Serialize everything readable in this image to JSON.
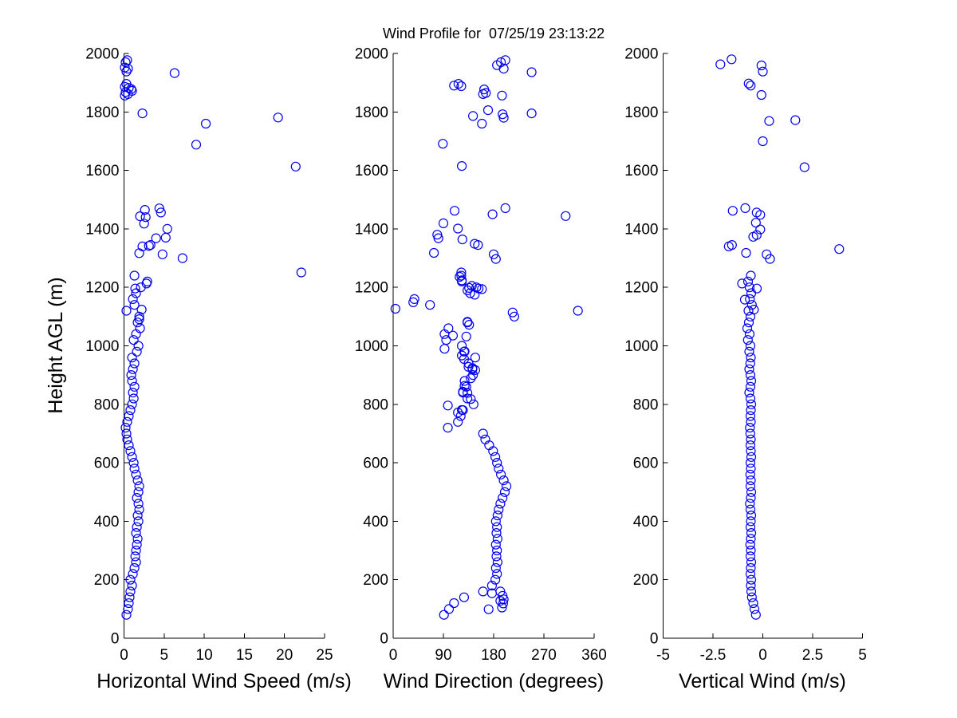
{
  "figure": {
    "title": "Wind Profile for  07/25/19 23:13:22",
    "marker_color": "#0000EE",
    "axis_color": "#000000",
    "background": "#FFFFFF",
    "marker_style": "open-circle",
    "tick_direction": "in"
  },
  "chart_data": [
    {
      "type": "scatter",
      "xlabel": "Horizontal Wind Speed (m/s)",
      "ylabel": "Height AGL (m)",
      "xlim": [
        0,
        25
      ],
      "ylim": [
        0,
        2000
      ],
      "xticks": [
        0,
        5,
        10,
        15,
        20,
        25
      ],
      "yticks": [
        0,
        200,
        400,
        600,
        800,
        1000,
        1200,
        1400,
        1600,
        1800,
        2000
      ],
      "grid": false,
      "points": [
        [
          0.3,
          80
        ],
        [
          0.5,
          100
        ],
        [
          0.6,
          120
        ],
        [
          0.7,
          140
        ],
        [
          0.8,
          160
        ],
        [
          1.0,
          180
        ],
        [
          0.8,
          200
        ],
        [
          1.1,
          220
        ],
        [
          1.3,
          240
        ],
        [
          1.5,
          260
        ],
        [
          1.4,
          280
        ],
        [
          1.5,
          300
        ],
        [
          1.6,
          320
        ],
        [
          1.7,
          340
        ],
        [
          1.5,
          360
        ],
        [
          1.6,
          380
        ],
        [
          1.8,
          400
        ],
        [
          1.7,
          420
        ],
        [
          1.9,
          440
        ],
        [
          1.8,
          460
        ],
        [
          1.6,
          480
        ],
        [
          1.8,
          500
        ],
        [
          1.9,
          520
        ],
        [
          1.7,
          540
        ],
        [
          1.5,
          560
        ],
        [
          1.3,
          580
        ],
        [
          1.2,
          600
        ],
        [
          1.0,
          620
        ],
        [
          0.8,
          640
        ],
        [
          0.6,
          660
        ],
        [
          0.4,
          680
        ],
        [
          0.3,
          700
        ],
        [
          0.2,
          720
        ],
        [
          0.4,
          740
        ],
        [
          0.6,
          760
        ],
        [
          0.8,
          780
        ],
        [
          1.0,
          800
        ],
        [
          1.2,
          820
        ],
        [
          1.1,
          840
        ],
        [
          1.3,
          860
        ],
        [
          1.0,
          880
        ],
        [
          0.9,
          900
        ],
        [
          1.1,
          920
        ],
        [
          1.3,
          940
        ],
        [
          1.0,
          960
        ],
        [
          1.6,
          980
        ],
        [
          1.8,
          1000
        ],
        [
          1.2,
          1020
        ],
        [
          1.5,
          1040
        ],
        [
          2.0,
          1060
        ],
        [
          1.7,
          1080
        ],
        [
          1.9,
          1100
        ],
        [
          0.3,
          1120
        ],
        [
          1.3,
          1140
        ],
        [
          1.1,
          1160
        ],
        [
          1.5,
          1180
        ],
        [
          2.1,
          1200
        ],
        [
          2.9,
          1220
        ],
        [
          1.3,
          1240
        ],
        [
          1.9,
          1091
        ],
        [
          2.2,
          1124
        ],
        [
          1.4,
          1196
        ],
        [
          2.8,
          1213
        ],
        [
          22.1,
          1251
        ],
        [
          7.3,
          1300
        ],
        [
          4.8,
          1313
        ],
        [
          1.9,
          1317
        ],
        [
          2.3,
          1340
        ],
        [
          3.1,
          1342
        ],
        [
          3.3,
          1345
        ],
        [
          4.0,
          1368
        ],
        [
          5.2,
          1370
        ],
        [
          5.4,
          1400
        ],
        [
          2.5,
          1418
        ],
        [
          2.7,
          1440
        ],
        [
          2.0,
          1443
        ],
        [
          4.6,
          1456
        ],
        [
          2.6,
          1465
        ],
        [
          4.4,
          1470
        ],
        [
          21.4,
          1613
        ],
        [
          9.0,
          1688
        ],
        [
          10.2,
          1760
        ],
        [
          19.2,
          1781
        ],
        [
          2.3,
          1795
        ],
        [
          0.1,
          1856
        ],
        [
          0.5,
          1861
        ],
        [
          0.2,
          1868
        ],
        [
          1.0,
          1872
        ],
        [
          0.9,
          1878
        ],
        [
          0.6,
          1882
        ],
        [
          0.1,
          1886
        ],
        [
          0.3,
          1896
        ],
        [
          6.3,
          1933
        ],
        [
          0.3,
          1938
        ],
        [
          0.5,
          1948
        ],
        [
          0.1,
          1952
        ],
        [
          0.2,
          1970
        ],
        [
          0.4,
          1977
        ]
      ]
    },
    {
      "type": "scatter",
      "xlabel": "Wind Direction (degrees)",
      "ylabel": "",
      "xlim": [
        0,
        360
      ],
      "ylim": [
        0,
        2000
      ],
      "xticks": [
        0,
        90,
        180,
        270,
        360
      ],
      "yticks": [
        0,
        200,
        400,
        600,
        800,
        1000,
        1200,
        1400,
        1600,
        1800,
        2000
      ],
      "grid": false,
      "points": [
        [
          91,
          80
        ],
        [
          100,
          100
        ],
        [
          109,
          120
        ],
        [
          127,
          140
        ],
        [
          161,
          160
        ],
        [
          177,
          180
        ],
        [
          183,
          200
        ],
        [
          186,
          220
        ],
        [
          184,
          240
        ],
        [
          187,
          260
        ],
        [
          185,
          280
        ],
        [
          186,
          300
        ],
        [
          184,
          320
        ],
        [
          187,
          340
        ],
        [
          185,
          360
        ],
        [
          186,
          380
        ],
        [
          184,
          400
        ],
        [
          187,
          420
        ],
        [
          189,
          440
        ],
        [
          192,
          460
        ],
        [
          196,
          480
        ],
        [
          200,
          500
        ],
        [
          203,
          520
        ],
        [
          198,
          540
        ],
        [
          193,
          560
        ],
        [
          189,
          580
        ],
        [
          186,
          600
        ],
        [
          183,
          620
        ],
        [
          179,
          640
        ],
        [
          172,
          660
        ],
        [
          165,
          680
        ],
        [
          161,
          700
        ],
        [
          98,
          720
        ],
        [
          116,
          740
        ],
        [
          121,
          760
        ],
        [
          125,
          780
        ],
        [
          144,
          800
        ],
        [
          133,
          820
        ],
        [
          125,
          840
        ],
        [
          131,
          860
        ],
        [
          128,
          880
        ],
        [
          143,
          900
        ],
        [
          142,
          920
        ],
        [
          135,
          940
        ],
        [
          147,
          960
        ],
        [
          127,
          980
        ],
        [
          123,
          1000
        ],
        [
          95,
          1020
        ],
        [
          92,
          1040
        ],
        [
          99,
          1060
        ],
        [
          133,
          1080
        ],
        [
          217,
          1100
        ],
        [
          331,
          1120
        ],
        [
          66,
          1140
        ],
        [
          38,
          1160
        ],
        [
          138,
          1180
        ],
        [
          149,
          1200
        ],
        [
          123,
          1220
        ],
        [
          122,
          1240
        ],
        [
          171,
          99
        ],
        [
          195,
          105
        ],
        [
          197,
          119
        ],
        [
          192,
          128
        ],
        [
          198,
          133
        ],
        [
          196,
          145
        ],
        [
          177,
          154
        ],
        [
          192,
          160
        ],
        [
          116,
          772
        ],
        [
          123,
          781
        ],
        [
          98,
          796
        ],
        [
          139,
          818
        ],
        [
          133,
          839
        ],
        [
          125,
          843
        ],
        [
          128,
          863
        ],
        [
          139,
          889
        ],
        [
          147,
          917
        ],
        [
          142,
          924
        ],
        [
          135,
          928
        ],
        [
          127,
          955
        ],
        [
          123,
          967
        ],
        [
          128,
          981
        ],
        [
          92,
          990
        ],
        [
          136,
          1072
        ],
        [
          133,
          1082
        ],
        [
          214,
          1114
        ],
        [
          4,
          1127
        ],
        [
          36,
          1149
        ],
        [
          146,
          1175
        ],
        [
          133,
          1190
        ],
        [
          159,
          1194
        ],
        [
          153,
          1196
        ],
        [
          136,
          1198
        ],
        [
          141,
          1205
        ],
        [
          119,
          1236
        ],
        [
          131,
          1032
        ],
        [
          107,
          1035
        ],
        [
          123,
          1224
        ],
        [
          122,
          1251
        ],
        [
          184,
          1297
        ],
        [
          180,
          1313
        ],
        [
          73,
          1318
        ],
        [
          152,
          1345
        ],
        [
          146,
          1349
        ],
        [
          124,
          1364
        ],
        [
          81,
          1368
        ],
        [
          79,
          1380
        ],
        [
          116,
          1401
        ],
        [
          90,
          1419
        ],
        [
          309,
          1444
        ],
        [
          178,
          1450
        ],
        [
          110,
          1462
        ],
        [
          201,
          1471
        ],
        [
          123,
          1615
        ],
        [
          89,
          1691
        ],
        [
          159,
          1760
        ],
        [
          198,
          1780
        ],
        [
          143,
          1786
        ],
        [
          196,
          1792
        ],
        [
          248,
          1795
        ],
        [
          170,
          1806
        ],
        [
          195,
          1856
        ],
        [
          161,
          1861
        ],
        [
          166,
          1865
        ],
        [
          163,
          1877
        ],
        [
          122,
          1888
        ],
        [
          109,
          1890
        ],
        [
          117,
          1896
        ],
        [
          248,
          1936
        ],
        [
          198,
          1948
        ],
        [
          186,
          1960
        ],
        [
          193,
          1970
        ],
        [
          201,
          1977
        ]
      ]
    },
    {
      "type": "scatter",
      "xlabel": "Vertical Wind (m/s)",
      "ylabel": "",
      "xlim": [
        -5,
        5
      ],
      "ylim": [
        0,
        2000
      ],
      "xticks": [
        -5,
        -2.5,
        0,
        2.5,
        5
      ],
      "yticks": [
        0,
        200,
        400,
        600,
        800,
        1000,
        1200,
        1400,
        1600,
        1800,
        2000
      ],
      "grid": false,
      "points": [
        [
          -0.35,
          80
        ],
        [
          -0.42,
          100
        ],
        [
          -0.48,
          120
        ],
        [
          -0.55,
          140
        ],
        [
          -0.58,
          160
        ],
        [
          -0.6,
          180
        ],
        [
          -0.58,
          200
        ],
        [
          -0.62,
          220
        ],
        [
          -0.6,
          240
        ],
        [
          -0.58,
          260
        ],
        [
          -0.62,
          280
        ],
        [
          -0.6,
          300
        ],
        [
          -0.63,
          320
        ],
        [
          -0.6,
          340
        ],
        [
          -0.58,
          360
        ],
        [
          -0.62,
          380
        ],
        [
          -0.6,
          400
        ],
        [
          -0.58,
          420
        ],
        [
          -0.62,
          440
        ],
        [
          -0.65,
          460
        ],
        [
          -0.6,
          480
        ],
        [
          -0.58,
          500
        ],
        [
          -0.62,
          520
        ],
        [
          -0.6,
          540
        ],
        [
          -0.63,
          560
        ],
        [
          -0.6,
          580
        ],
        [
          -0.62,
          600
        ],
        [
          -0.58,
          620
        ],
        [
          -0.6,
          640
        ],
        [
          -0.62,
          660
        ],
        [
          -0.6,
          680
        ],
        [
          -0.63,
          700
        ],
        [
          -0.65,
          720
        ],
        [
          -0.6,
          740
        ],
        [
          -0.62,
          760
        ],
        [
          -0.6,
          780
        ],
        [
          -0.58,
          800
        ],
        [
          -0.62,
          820
        ],
        [
          -0.68,
          840
        ],
        [
          -0.62,
          860
        ],
        [
          -0.58,
          880
        ],
        [
          -0.62,
          900
        ],
        [
          -0.68,
          920
        ],
        [
          -0.63,
          940
        ],
        [
          -0.6,
          960
        ],
        [
          -0.68,
          980
        ],
        [
          -0.62,
          1000
        ],
        [
          -0.75,
          1020
        ],
        [
          -0.66,
          1040
        ],
        [
          -0.78,
          1060
        ],
        [
          -0.7,
          1080
        ],
        [
          -0.62,
          1100
        ],
        [
          -0.72,
          1120
        ],
        [
          -0.55,
          1140
        ],
        [
          -0.65,
          1160
        ],
        [
          -0.58,
          1180
        ],
        [
          -0.66,
          1200
        ],
        [
          -0.74,
          1220
        ],
        [
          -0.6,
          1240
        ],
        [
          -0.45,
          1124
        ],
        [
          -0.9,
          1158
        ],
        [
          -0.3,
          1196
        ],
        [
          -1.04,
          1213
        ],
        [
          0.36,
          1297
        ],
        [
          0.19,
          1313
        ],
        [
          -0.84,
          1318
        ],
        [
          3.83,
          1331
        ],
        [
          -1.71,
          1340
        ],
        [
          -1.55,
          1345
        ],
        [
          -0.48,
          1373
        ],
        [
          -0.31,
          1379
        ],
        [
          -0.13,
          1398
        ],
        [
          -0.35,
          1421
        ],
        [
          -0.13,
          1448
        ],
        [
          -0.31,
          1456
        ],
        [
          -1.51,
          1462
        ],
        [
          -0.88,
          1471
        ],
        [
          2.09,
          1611
        ],
        [
          0.0,
          1700
        ],
        [
          0.32,
          1769
        ],
        [
          1.63,
          1772
        ],
        [
          -0.07,
          1858
        ],
        [
          -0.61,
          1890
        ],
        [
          -0.71,
          1897
        ],
        [
          0.0,
          1938
        ],
        [
          -0.07,
          1959
        ],
        [
          -2.13,
          1963
        ],
        [
          -1.57,
          1980
        ]
      ]
    }
  ]
}
